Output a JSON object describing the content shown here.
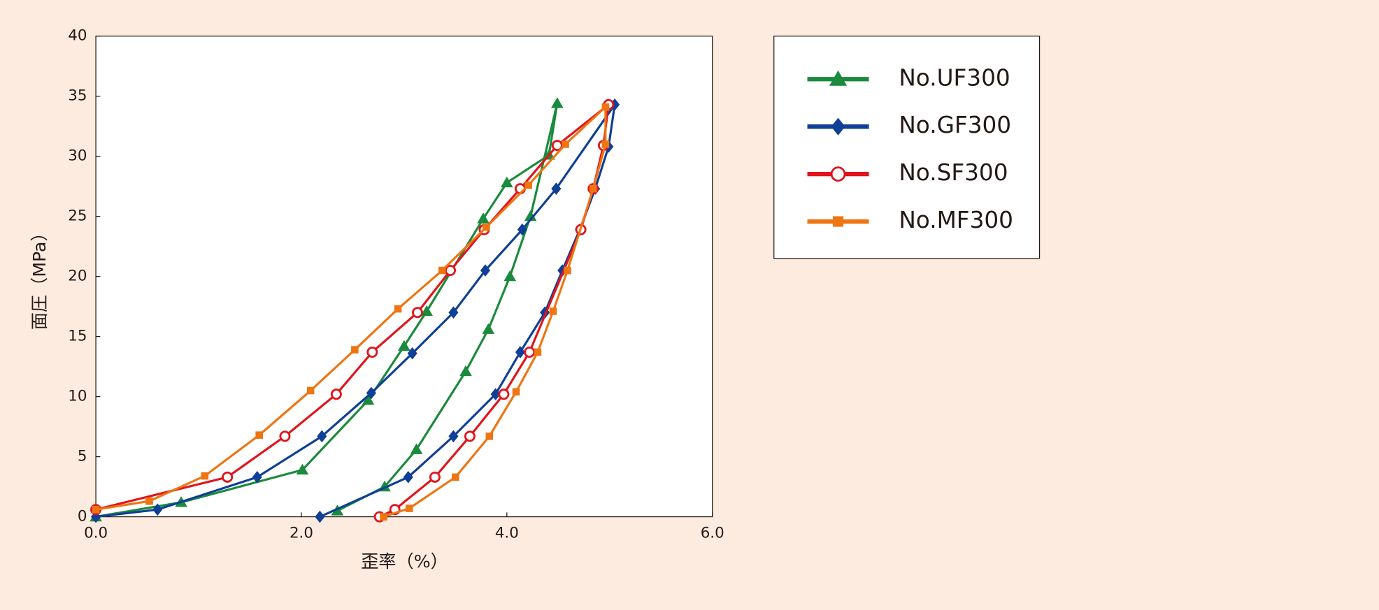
{
  "chart_data": {
    "type": "line",
    "xlabel": "歪率（%）",
    "ylabel": "面圧（MPa）",
    "xlim": [
      0,
      6
    ],
    "ylim": [
      0,
      40
    ],
    "xticks": [
      {
        "value": 0,
        "label": "0.0"
      },
      {
        "value": 2,
        "label": "2.0"
      },
      {
        "value": 4,
        "label": "4.0"
      },
      {
        "value": 6,
        "label": "6.0"
      }
    ],
    "yticks": [
      0,
      5,
      10,
      15,
      20,
      25,
      30,
      35,
      40
    ],
    "legend": "outside-right",
    "series": [
      {
        "name": "No.UF300",
        "color": "#1a8a3c",
        "marker": "triangle",
        "x": [
          0,
          0.83,
          2.01,
          2.65,
          3.0,
          3.22,
          3.77,
          4.0,
          4.41,
          4.49,
          4.23,
          4.03,
          3.82,
          3.6,
          3.12,
          2.81,
          2.35
        ],
        "values": [
          0,
          1.2,
          3.9,
          9.7,
          14.2,
          17.1,
          24.8,
          27.8,
          30.1,
          34.4,
          25.0,
          20.0,
          15.6,
          12.1,
          5.6,
          2.5,
          0.5
        ]
      },
      {
        "name": "No.GF300",
        "color": "#0f3f96",
        "marker": "diamond",
        "x": [
          0,
          0.6,
          1.57,
          2.2,
          2.68,
          3.08,
          3.48,
          3.79,
          4.15,
          4.48,
          5.05,
          4.99,
          4.86,
          4.71,
          4.54,
          4.37,
          4.13,
          3.89,
          3.48,
          3.04,
          2.18
        ],
        "values": [
          0,
          0.6,
          3.3,
          6.7,
          10.3,
          13.6,
          17.0,
          20.5,
          23.9,
          27.3,
          34.3,
          30.8,
          27.3,
          23.9,
          20.5,
          17.0,
          13.7,
          10.2,
          6.7,
          3.3,
          0
        ]
      },
      {
        "name": "No.SF300",
        "color": "#e0151b",
        "marker": "circle-open",
        "x": [
          0,
          1.28,
          1.84,
          2.34,
          2.69,
          3.13,
          3.45,
          3.78,
          4.13,
          4.49,
          4.99,
          4.94,
          4.84,
          4.72,
          4.22,
          3.97,
          3.64,
          3.3,
          2.91,
          2.76
        ],
        "values": [
          0.6,
          3.3,
          6.7,
          10.2,
          13.7,
          17.0,
          20.5,
          23.9,
          27.3,
          30.9,
          34.3,
          30.9,
          27.3,
          23.9,
          13.7,
          10.2,
          6.7,
          3.3,
          0.6,
          0
        ]
      },
      {
        "name": "No.MF300",
        "color": "#ee7512",
        "marker": "square",
        "x": [
          0,
          0.52,
          1.06,
          1.59,
          2.09,
          2.52,
          2.94,
          3.37,
          3.8,
          4.21,
          4.57,
          4.96,
          4.96,
          4.84,
          4.59,
          4.45,
          4.3,
          4.09,
          3.83,
          3.5,
          3.05,
          2.8
        ],
        "values": [
          0.6,
          1.3,
          3.4,
          6.8,
          10.5,
          13.9,
          17.3,
          20.5,
          24.1,
          27.6,
          31.0,
          34.1,
          31.0,
          27.3,
          20.5,
          17.1,
          13.7,
          10.4,
          6.7,
          3.3,
          0.7,
          0
        ]
      }
    ]
  }
}
